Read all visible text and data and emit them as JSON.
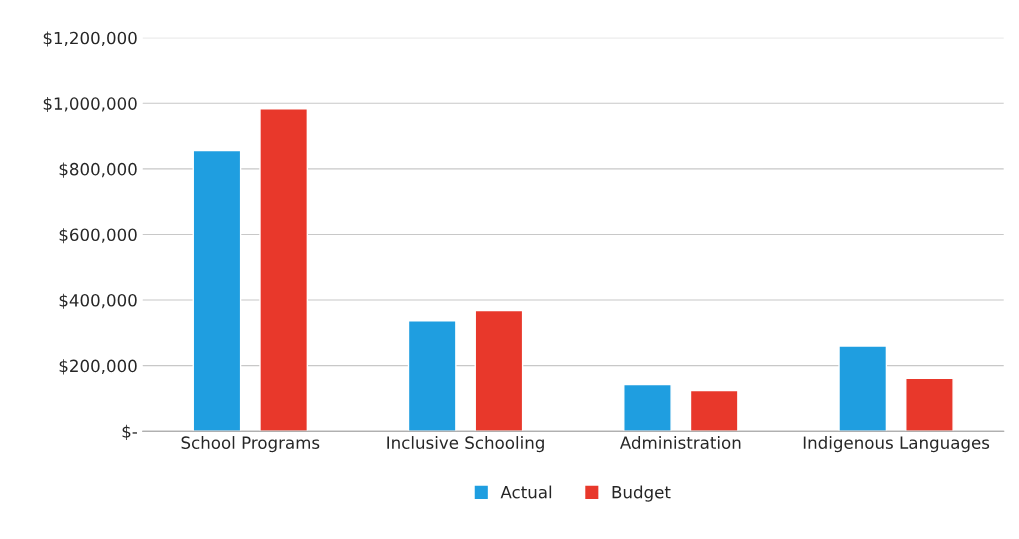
{
  "chart_data": {
    "type": "bar",
    "categories": [
      "School Programs",
      "Inclusive Schooling",
      "Administration",
      "Indigenous Languages"
    ],
    "series": [
      {
        "name": "Actual",
        "color": "#1f9ee0",
        "values": [
          856000,
          337000,
          142000,
          260000
        ]
      },
      {
        "name": "Budget",
        "color": "#e8382b",
        "values": [
          983000,
          368000,
          124000,
          161000
        ]
      }
    ],
    "ylim": [
      0,
      1200000
    ],
    "yticks": [
      {
        "value": 0,
        "label": "$-"
      },
      {
        "value": 200000,
        "label": "$200,000"
      },
      {
        "value": 400000,
        "label": "$400,000"
      },
      {
        "value": 600000,
        "label": "$600,000"
      },
      {
        "value": 800000,
        "label": "$800,000"
      },
      {
        "value": 1000000,
        "label": "$1,000,000"
      },
      {
        "value": 1200000,
        "label": "$1,200,000"
      }
    ],
    "grid": "y",
    "legend": "bottom"
  }
}
